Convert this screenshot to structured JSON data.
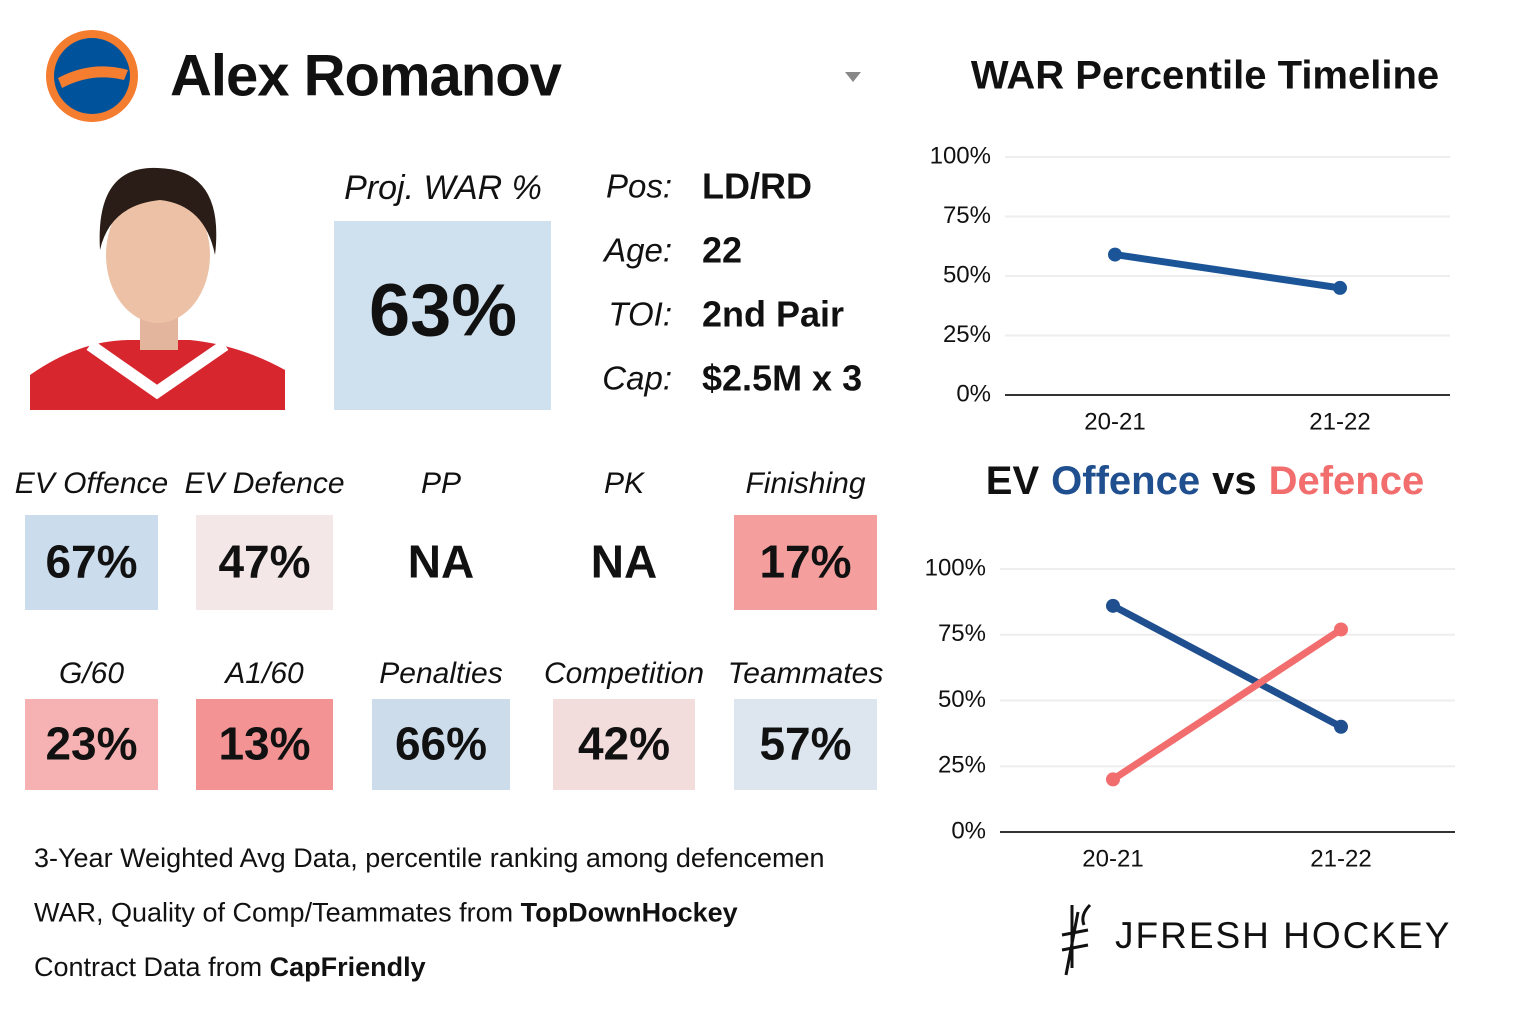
{
  "header": {
    "player_name": "Alex Romanov"
  },
  "projection": {
    "label": "Proj. WAR %",
    "value": "63%",
    "color": "#cfe0ee"
  },
  "bio": [
    {
      "label": "Pos:",
      "value": "LD/RD"
    },
    {
      "label": "Age:",
      "value": "22"
    },
    {
      "label": "TOI:",
      "value": "2nd Pair"
    },
    {
      "label": "Cap:",
      "value": "$2.5M x 3"
    }
  ],
  "tiles": [
    [
      {
        "label": "EV Offence",
        "value": "67%",
        "color": "#cbdcec"
      },
      {
        "label": "EV Defence",
        "value": "47%",
        "color": "#f3e7e7"
      },
      {
        "label": "PP",
        "value": "NA"
      },
      {
        "label": "PK",
        "value": "NA"
      },
      {
        "label": "Finishing",
        "value": "17%",
        "color": "#f49e9e"
      }
    ],
    [
      {
        "label": "G/60",
        "value": "23%",
        "color": "#f6b2b2"
      },
      {
        "label": "A1/60",
        "value": "13%",
        "color": "#f49393"
      },
      {
        "label": "Penalties",
        "value": "66%",
        "color": "#ccdceb"
      },
      {
        "label": "Competition",
        "value": "42%",
        "color": "#f3dcdc"
      },
      {
        "label": "Teammates",
        "value": "57%",
        "color": "#dde6ef"
      }
    ]
  ],
  "notes": [
    {
      "text": "3-Year Weighted Avg Data, percentile ranking among defencemen"
    },
    {
      "text": "WAR, Quality of Comp/Teammates from ",
      "source": "TopDownHockey"
    },
    {
      "text": "Contract Data from ",
      "source": "CapFriendly"
    }
  ],
  "brand": "JFRESH HOCKEY",
  "chart_data": [
    {
      "type": "line",
      "title": "WAR Percentile Timeline",
      "categories": [
        "20-21",
        "21-22"
      ],
      "series": [
        {
          "color": "#1c5597",
          "values": [
            59,
            45
          ]
        }
      ],
      "ylim": [
        0,
        100
      ],
      "yticks": [
        {
          "value": 0,
          "label": "0%"
        },
        {
          "value": 25,
          "label": "25%"
        },
        {
          "value": 50,
          "label": "50%"
        },
        {
          "value": 75,
          "label": "75%"
        },
        {
          "value": 100,
          "label": "100%"
        }
      ],
      "grid": true
    },
    {
      "type": "line",
      "title_start": "EV",
      "title_join": "vs",
      "categories": [
        "20-21",
        "21-22"
      ],
      "series": [
        {
          "name": "Offence",
          "color": "#1f4f8f",
          "values": [
            86,
            40
          ]
        },
        {
          "name": "Defence",
          "color": "#f26d6d",
          "values": [
            20,
            77
          ]
        }
      ],
      "ylim": [
        0,
        100
      ],
      "yticks": [
        {
          "value": 0,
          "label": "0%"
        },
        {
          "value": 25,
          "label": "25%"
        },
        {
          "value": 50,
          "label": "50%"
        },
        {
          "value": 75,
          "label": "75%"
        },
        {
          "value": 100,
          "label": "100%"
        }
      ],
      "grid": true
    }
  ]
}
